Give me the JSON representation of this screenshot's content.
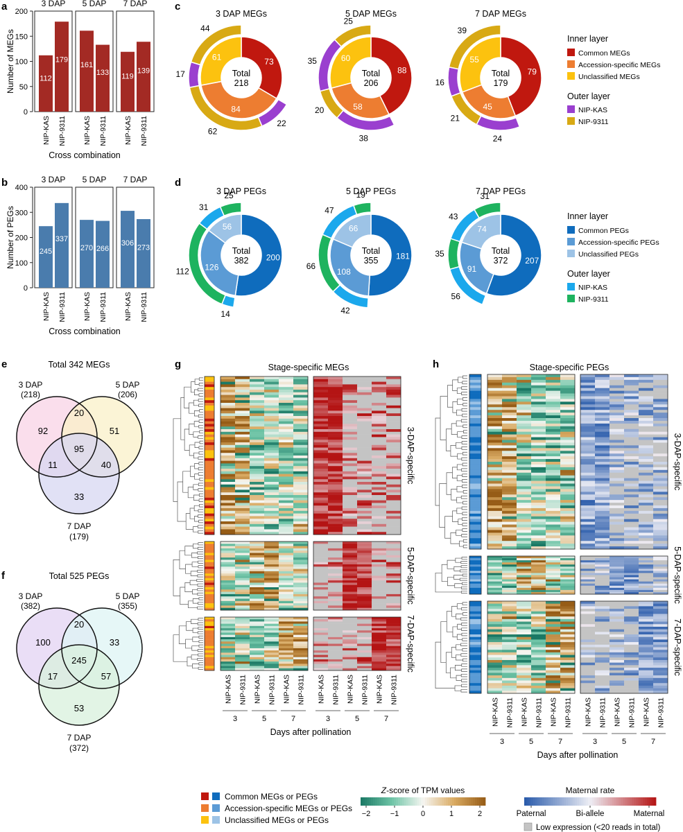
{
  "panels": {
    "a": "a",
    "b": "b",
    "c": "c",
    "d": "d",
    "e": "e",
    "f": "f",
    "g": "g",
    "h": "h"
  },
  "colors": {
    "meg_bar": "#a32a24",
    "peg_bar": "#4a7cad",
    "common_meg": "#c0180f",
    "acc_meg": "#ed7d31",
    "uncl_meg": "#fcc20f",
    "nip_kas_meg": "#9a3fcf",
    "nip_9311_meg": "#d8a914",
    "common_peg": "#0f6cbd",
    "acc_peg": "#5b9bd5",
    "uncl_peg": "#9dc3e6",
    "nip_kas_peg": "#1ba8ec",
    "nip_9311_peg": "#1eb35f"
  },
  "chart_data": [
    {
      "panel": "a",
      "type": "bar",
      "ylabel": "Number of MEGs",
      "xlabel": "Cross combination",
      "ylim": [
        0,
        200
      ],
      "yticks": [
        0,
        50,
        100,
        150,
        200
      ],
      "groups": [
        {
          "name": "3 DAP",
          "categories": [
            "NIP-KAS",
            "NIP-9311"
          ],
          "values": [
            112,
            179
          ]
        },
        {
          "name": "5 DAP",
          "categories": [
            "NIP-KAS",
            "NIP-9311"
          ],
          "values": [
            161,
            133
          ]
        },
        {
          "name": "7 DAP",
          "categories": [
            "NIP-KAS",
            "NIP-9311"
          ],
          "values": [
            119,
            139
          ]
        }
      ]
    },
    {
      "panel": "b",
      "type": "bar",
      "ylabel": "Number of PEGs",
      "xlabel": "Cross combination",
      "ylim": [
        0,
        400
      ],
      "yticks": [
        0,
        100,
        200,
        300,
        400
      ],
      "groups": [
        {
          "name": "3 DAP",
          "categories": [
            "NIP-KAS",
            "NIP-9311"
          ],
          "values": [
            245,
            337
          ]
        },
        {
          "name": "5 DAP",
          "categories": [
            "NIP-KAS",
            "NIP-9311"
          ],
          "values": [
            270,
            266
          ]
        },
        {
          "name": "7 DAP",
          "categories": [
            "NIP-KAS",
            "NIP-9311"
          ],
          "values": [
            306,
            273
          ]
        }
      ]
    },
    {
      "panel": "c",
      "type": "pie",
      "kind": "MEG",
      "donuts": [
        {
          "title": "3 DAP MEGs",
          "total_label": "Total",
          "total": 218,
          "inner": [
            73,
            84,
            61
          ],
          "outer": [
            {
              "v": 22,
              "s": "kas"
            },
            {
              "v": 62,
              "s": "n9311"
            },
            {
              "v": 17,
              "s": "kas"
            },
            {
              "v": 44,
              "s": "n9311"
            }
          ]
        },
        {
          "title": "5 DAP MEGs",
          "total_label": "Total",
          "total": 206,
          "inner": [
            88,
            58,
            60
          ],
          "outer": [
            {
              "v": 38,
              "s": "kas"
            },
            {
              "v": 20,
              "s": "n9311"
            },
            {
              "v": 35,
              "s": "kas"
            },
            {
              "v": 25,
              "s": "n9311"
            }
          ]
        },
        {
          "title": "7 DAP MEGs",
          "total_label": "Total",
          "total": 179,
          "inner": [
            79,
            45,
            55
          ],
          "outer": [
            {
              "v": 24,
              "s": "kas"
            },
            {
              "v": 21,
              "s": "n9311"
            },
            {
              "v": 16,
              "s": "kas"
            },
            {
              "v": 39,
              "s": "n9311"
            }
          ]
        }
      ],
      "legend": {
        "inner_title": "Inner layer",
        "inner": [
          "Common MEGs",
          "Accession-specific MEGs",
          "Unclassified MEGs"
        ],
        "outer_title": "Outer layer",
        "outer": [
          "NIP-KAS",
          "NIP-9311"
        ]
      }
    },
    {
      "panel": "d",
      "type": "pie",
      "kind": "PEG",
      "donuts": [
        {
          "title": "3 DAP PEGs",
          "total_label": "Total",
          "total": 382,
          "inner": [
            200,
            126,
            56
          ],
          "outer": [
            {
              "v": 14,
              "s": "kas"
            },
            {
              "v": 112,
              "s": "n9311"
            },
            {
              "v": 31,
              "s": "kas"
            },
            {
              "v": 25,
              "s": "n9311"
            }
          ]
        },
        {
          "title": "5 DAP PEGs",
          "total_label": "Total",
          "total": 355,
          "inner": [
            181,
            108,
            66
          ],
          "outer": [
            {
              "v": 42,
              "s": "kas"
            },
            {
              "v": 66,
              "s": "n9311"
            },
            {
              "v": 47,
              "s": "kas"
            },
            {
              "v": 19,
              "s": "n9311"
            }
          ]
        },
        {
          "title": "7 DAP PEGs",
          "total_label": "Total",
          "total": 372,
          "inner": [
            207,
            91,
            74
          ],
          "outer": [
            {
              "v": 56,
              "s": "kas"
            },
            {
              "v": 35,
              "s": "n9311"
            },
            {
              "v": 43,
              "s": "kas"
            },
            {
              "v": 31,
              "s": "n9311"
            }
          ]
        }
      ],
      "legend": {
        "inner_title": "Inner layer",
        "inner": [
          "Common PEGs",
          "Accession-specific PEGs",
          "Unclassified PEGs"
        ],
        "outer_title": "Outer layer",
        "outer": [
          "NIP-KAS",
          "NIP-9311"
        ]
      }
    },
    {
      "panel": "e",
      "type": "venn",
      "title": "Total 342 MEGs",
      "sets": [
        {
          "name": "3 DAP",
          "count": "(218)"
        },
        {
          "name": "5 DAP",
          "count": "(206)"
        },
        {
          "name": "7 DAP",
          "count": "(179)"
        }
      ],
      "regions": {
        "a": 92,
        "b": 51,
        "c": 33,
        "ab": 20,
        "ac": 11,
        "bc": 40,
        "abc": 95
      },
      "fills": [
        "#f8d3e6",
        "#faf0c8",
        "#d7d7f2"
      ]
    },
    {
      "panel": "f",
      "type": "venn",
      "title": "Total 525 PEGs",
      "sets": [
        {
          "name": "3 DAP",
          "count": "(382)"
        },
        {
          "name": "5 DAP",
          "count": "(355)"
        },
        {
          "name": "7 DAP",
          "count": "(372)"
        }
      ],
      "regions": {
        "a": 100,
        "b": 33,
        "c": 53,
        "ab": 20,
        "ac": 17,
        "bc": 57,
        "abc": 245
      },
      "fills": [
        "#e3d3f3",
        "#ddf4f4",
        "#d8f0dc"
      ]
    },
    {
      "panel": "g",
      "type": "heatmap",
      "title": "Stage-specific MEGs",
      "row_groups": [
        "3-DAP-specific",
        "5-DAP-specific",
        "7-DAP-specific"
      ],
      "columns": [
        "NIP-KAS",
        "NIP-9311",
        "NIP-KAS",
        "NIP-9311",
        "NIP-KAS",
        "NIP-9311"
      ],
      "stages": [
        "3",
        "5",
        "7"
      ],
      "xlabel": "Days after pollination"
    },
    {
      "panel": "h",
      "type": "heatmap",
      "title": "Stage-specific PEGs",
      "row_groups": [
        "3-DAP-specific",
        "5-DAP-specific",
        "7-DAP-specific"
      ],
      "columns": [
        "NIP-KAS",
        "NIP-9311",
        "NIP-KAS",
        "NIP-9311",
        "NIP-KAS",
        "NIP-9311"
      ],
      "stages": [
        "3",
        "5",
        "7"
      ],
      "xlabel": "Days after pollination"
    }
  ],
  "bottom_legend": {
    "categories": [
      "Common MEGs or PEGs",
      "Accession-specific MEGs or PEGs",
      "Unclassified MEGs or PEGs"
    ],
    "zscore": {
      "title_italic": "Z",
      "title_rest": "-score of TPM values",
      "ticks": [
        "−2",
        "−1",
        "0",
        "1",
        "2"
      ]
    },
    "maternal": {
      "title": "Maternal rate",
      "labels": [
        "Paternal",
        "Bi-allele",
        "Maternal"
      ],
      "low_expr": "Low expression (<20 reads in total)"
    }
  }
}
